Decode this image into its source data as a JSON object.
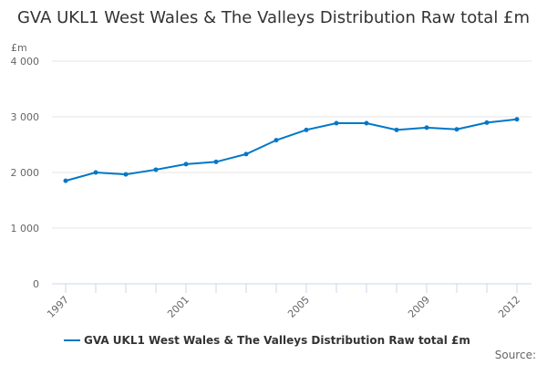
{
  "chart_data": {
    "type": "line",
    "title": "GVA UKL1 West Wales & The Valleys Distribution Raw total £m",
    "ylabel": "£m",
    "xlabel": "",
    "ylim": [
      0,
      4000
    ],
    "yticks": [
      "0",
      "1 000",
      "2 000",
      "3 000",
      "4 000"
    ],
    "yticks_values": [
      0,
      1000,
      2000,
      3000,
      4000
    ],
    "xticks": [
      "1997",
      "2001",
      "2005",
      "2009",
      "2012"
    ],
    "grid": true,
    "legend_position": "bottom",
    "color": "#0077c8",
    "x": [
      1997,
      1998,
      1999,
      2000,
      2001,
      2002,
      2003,
      2004,
      2005,
      2006,
      2007,
      2008,
      2009,
      2010,
      2011,
      2012
    ],
    "series": [
      {
        "name": "GVA UKL1 West Wales & The Valleys Distribution Raw total £m",
        "values": [
          1850,
          2000,
          1965,
          2050,
          2150,
          2190,
          2330,
          2580,
          2765,
          2885,
          2885,
          2765,
          2805,
          2775,
          2895,
          2955
        ]
      }
    ]
  },
  "source": "Source:"
}
